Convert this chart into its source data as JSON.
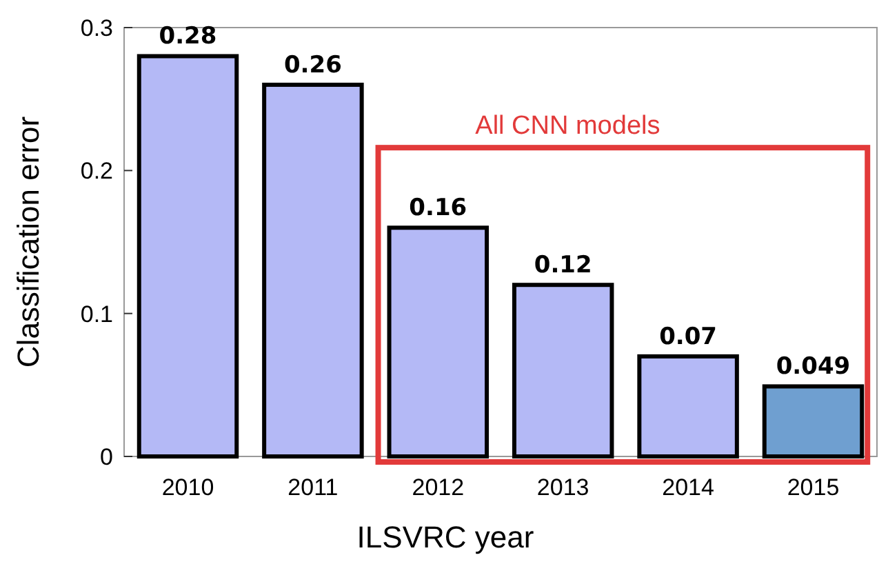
{
  "chart_data": {
    "type": "bar",
    "xlabel": "ILSVRC year",
    "ylabel": "Classification error",
    "categories": [
      "2010",
      "2011",
      "2012",
      "2013",
      "2014",
      "2015"
    ],
    "values": [
      0.28,
      0.26,
      0.16,
      0.12,
      0.07,
      0.049
    ],
    "colors": [
      "#b4b9f6",
      "#b4b9f6",
      "#b4b9f6",
      "#b4b9f6",
      "#b4b9f6",
      "#6f9fd0"
    ],
    "ylim": [
      0,
      0.3
    ],
    "yticks": [
      0,
      {
        "value": 0.1,
        "label": "0.1"
      },
      {
        "value": 0.2,
        "label": "0.2"
      },
      {
        "value": 0.3,
        "label": "0.3"
      }
    ],
    "data_labels": true,
    "grid": false,
    "annotations": [
      "All CNN models"
    ]
  }
}
